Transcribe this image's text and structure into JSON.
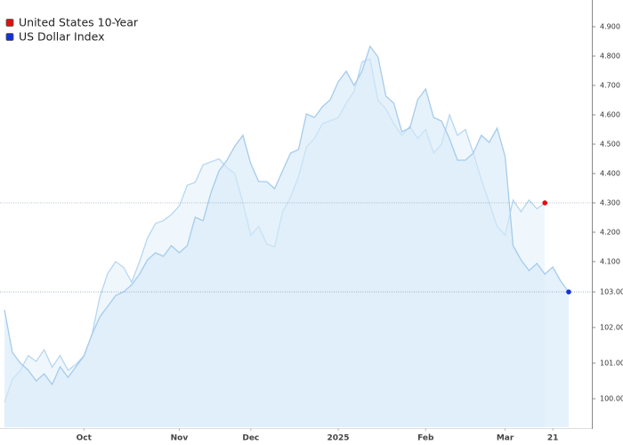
{
  "chart_data": {
    "type": "area",
    "categories": [
      null,
      null,
      null,
      null,
      null,
      null,
      null,
      null,
      null,
      null,
      "Oct",
      null,
      null,
      null,
      null,
      null,
      null,
      null,
      null,
      null,
      null,
      null,
      "Nov",
      null,
      null,
      null,
      null,
      null,
      null,
      null,
      null,
      "Dec",
      null,
      null,
      null,
      null,
      null,
      null,
      null,
      null,
      null,
      null,
      "2025",
      null,
      null,
      null,
      null,
      null,
      null,
      null,
      null,
      null,
      null,
      "Feb",
      null,
      null,
      null,
      null,
      null,
      null,
      null,
      null,
      null,
      "Mar",
      null,
      null,
      null,
      null,
      null,
      "21",
      null,
      null
    ],
    "series": [
      {
        "name": "United States 10-Year",
        "color": "#e01010",
        "fill": "#e4f1fb",
        "line": "#b5d6f0",
        "values": [
          3.62,
          3.7,
          3.73,
          3.78,
          3.76,
          3.8,
          3.74,
          3.78,
          3.73,
          3.75,
          3.78,
          3.85,
          3.98,
          4.06,
          4.1,
          4.08,
          4.03,
          4.1,
          4.18,
          4.23,
          4.24,
          4.26,
          4.29,
          4.36,
          4.37,
          4.43,
          4.44,
          4.45,
          4.42,
          4.4,
          4.3,
          4.19,
          4.22,
          4.16,
          4.15,
          4.27,
          4.32,
          4.39,
          4.49,
          4.52,
          4.57,
          4.58,
          4.59,
          4.64,
          4.68,
          4.78,
          4.79,
          4.65,
          4.62,
          4.57,
          4.53,
          4.56,
          4.52,
          4.55,
          4.47,
          4.5,
          4.6,
          4.53,
          4.55,
          4.47,
          4.38,
          4.3,
          4.22,
          4.19,
          4.31,
          4.27,
          4.31,
          4.28,
          4.3,
          null,
          null,
          null
        ]
      },
      {
        "name": "US Dollar Index",
        "color": "#1030e0",
        "fill": "#d6eaf8",
        "line": "#a6cbec",
        "axis": "y2",
        "values": [
          102.5,
          101.3,
          101.0,
          100.8,
          100.5,
          100.7,
          100.4,
          100.9,
          100.6,
          100.9,
          101.2,
          101.8,
          102.3,
          102.6,
          102.9,
          103.0,
          103.2,
          103.5,
          103.9,
          104.1,
          104.0,
          104.3,
          104.1,
          104.3,
          105.1,
          105.0,
          105.8,
          106.4,
          106.7,
          107.1,
          107.4,
          106.6,
          106.1,
          106.1,
          105.9,
          106.4,
          106.9,
          107.0,
          108.0,
          107.9,
          108.2,
          108.4,
          108.9,
          109.2,
          108.8,
          109.2,
          109.9,
          109.6,
          108.5,
          108.3,
          107.5,
          107.6,
          108.4,
          108.7,
          107.9,
          107.8,
          107.3,
          106.7,
          106.7,
          106.9,
          107.4,
          107.2,
          107.6,
          106.8,
          104.3,
          103.9,
          103.6,
          103.8,
          103.5,
          103.7,
          103.3,
          103.0
        ]
      }
    ],
    "ylim": [
      3.536,
      4.991
    ],
    "yticks": [
      {
        "value": 4.1,
        "label": "4.100"
      },
      {
        "value": 4.2,
        "label": "4.200"
      },
      {
        "value": 4.3,
        "label": "4.300"
      },
      {
        "value": 4.4,
        "label": "4.400"
      },
      {
        "value": 4.5,
        "label": "4.500"
      },
      {
        "value": 4.6,
        "label": "4.600"
      },
      {
        "value": 4.7,
        "label": "4.700"
      },
      {
        "value": 4.8,
        "label": "4.800"
      },
      {
        "value": 4.9,
        "label": "4.900"
      }
    ],
    "y2lim": [
      99.2,
      111.2
    ],
    "y2ticks": [
      {
        "value": 100,
        "label": "100.00"
      },
      {
        "value": 101,
        "label": "101.00"
      },
      {
        "value": 102,
        "label": "102.00"
      },
      {
        "value": 103,
        "label": "103.00"
      }
    ],
    "legend": "top-left",
    "last_value_lines": true
  }
}
